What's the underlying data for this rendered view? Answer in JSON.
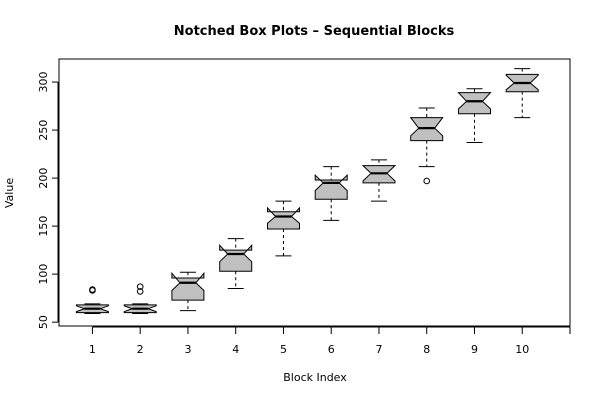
{
  "chart_data": {
    "type": "box",
    "notched": true,
    "title": "Notched Box Plots – Sequential Blocks",
    "xlabel": "Block Index",
    "ylabel": "Value",
    "ylim": [
      46,
      324
    ],
    "xlim": [
      0.3,
      11.0
    ],
    "yticks": [
      50,
      100,
      150,
      200,
      250,
      300
    ],
    "categories": [
      "1",
      "2",
      "3",
      "4",
      "5",
      "6",
      "7",
      "8",
      "9",
      "10"
    ],
    "box_fill": "#c0c0c0",
    "boxes": [
      {
        "label": "1",
        "min": 59,
        "q1": 60,
        "median": 64,
        "q3": 68,
        "max": 69,
        "notch_low": 61,
        "notch_high": 67,
        "outliers": [
          83,
          84
        ]
      },
      {
        "label": "2",
        "min": 59,
        "q1": 60,
        "median": 64,
        "q3": 68,
        "max": 69,
        "notch_low": 61,
        "notch_high": 67,
        "outliers": [
          82,
          87
        ]
      },
      {
        "label": "3",
        "min": 62,
        "q1": 73,
        "median": 91,
        "q3": 96,
        "max": 102,
        "notch_low": 83,
        "notch_high": 101,
        "outliers": []
      },
      {
        "label": "4",
        "min": 85,
        "q1": 103,
        "median": 121,
        "q3": 125,
        "max": 137,
        "notch_low": 113,
        "notch_high": 130,
        "outliers": []
      },
      {
        "label": "5",
        "min": 119,
        "q1": 147,
        "median": 160,
        "q3": 165,
        "max": 176,
        "notch_low": 153,
        "notch_high": 169,
        "outliers": []
      },
      {
        "label": "6",
        "min": 156,
        "q1": 178,
        "median": 195,
        "q3": 198,
        "max": 212,
        "notch_low": 187,
        "notch_high": 203,
        "outliers": []
      },
      {
        "label": "7",
        "min": 176,
        "q1": 195,
        "median": 205,
        "q3": 213,
        "max": 219,
        "notch_low": 197,
        "notch_high": 213,
        "outliers": []
      },
      {
        "label": "8",
        "min": 212,
        "q1": 239,
        "median": 252,
        "q3": 263,
        "max": 273,
        "notch_low": 244,
        "notch_high": 263,
        "outliers": [
          197
        ]
      },
      {
        "label": "9",
        "min": 237,
        "q1": 267,
        "median": 280,
        "q3": 289,
        "max": 293,
        "notch_low": 272,
        "notch_high": 289,
        "outliers": []
      },
      {
        "label": "10",
        "min": 263,
        "q1": 290,
        "median": 299,
        "q3": 308,
        "max": 314,
        "notch_low": 292,
        "notch_high": 307,
        "outliers": []
      }
    ]
  }
}
